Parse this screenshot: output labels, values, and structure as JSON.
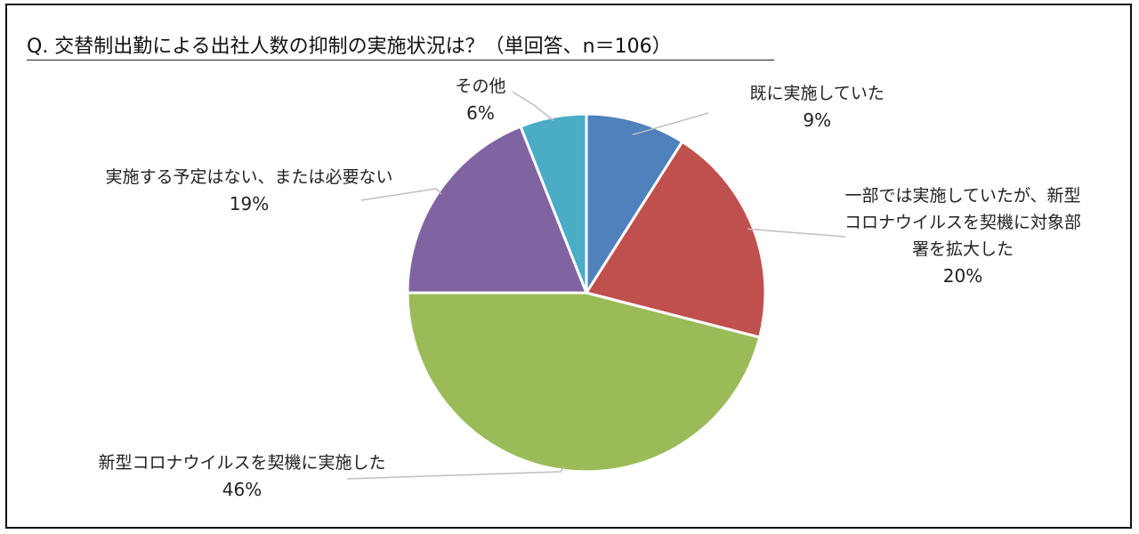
{
  "header": {
    "title": "Q. 交替制出勤による出社人数の抑制の実施状況は？（単回答、n＝106）"
  },
  "chart_data": {
    "type": "pie",
    "title": "Q. 交替制出勤による出社人数の抑制の実施状況は？（単回答、n＝106）",
    "slices": [
      {
        "label_lines": [
          "既に実施していた"
        ],
        "value": 9,
        "value_label": "9%",
        "color": "#4f81bd"
      },
      {
        "label_lines": [
          "一部では実施していたが、新型",
          "コロナウイルスを契機に対象部",
          "署を拡大した"
        ],
        "value": 20,
        "value_label": "20%",
        "color": "#c0504d"
      },
      {
        "label_lines": [
          "新型コロナウイルスを契機に実施した"
        ],
        "value": 46,
        "value_label": "46%",
        "color": "#9bbb59"
      },
      {
        "label_lines": [
          "実施する予定はない、または必要ない"
        ],
        "value": 19,
        "value_label": "19%",
        "color": "#8064a2"
      },
      {
        "label_lines": [
          "その他"
        ],
        "value": 6,
        "value_label": "6%",
        "color": "#4bacc6"
      }
    ],
    "start_angle": "12 o'clock",
    "direction": "clockwise"
  }
}
